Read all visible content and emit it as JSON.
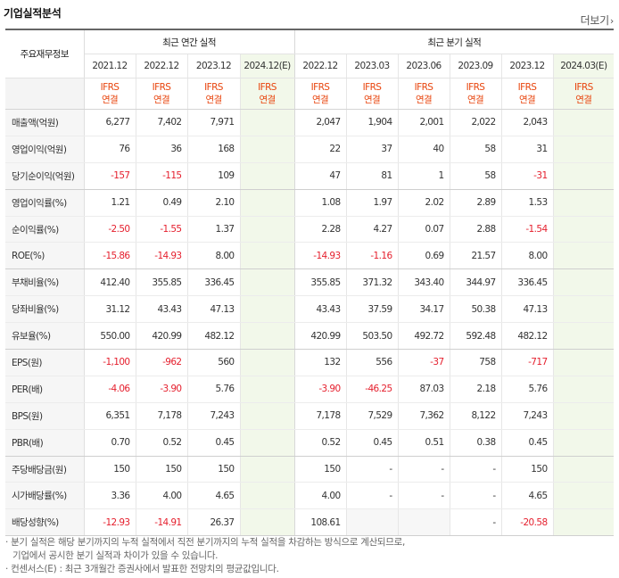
{
  "section_title": "기업실적분석",
  "more_label": "더보기",
  "more_arrow": "›",
  "row_header_label": "주요재무정보",
  "annual_header": "최근 연간 실적",
  "quarter_header": "최근 분기 실적",
  "periods": [
    {
      "label": "2021.12",
      "estimate": false
    },
    {
      "label": "2022.12",
      "estimate": false
    },
    {
      "label": "2023.12",
      "estimate": false
    },
    {
      "label": "2024.12(E)",
      "estimate": true
    },
    {
      "label": "2022.12",
      "estimate": false
    },
    {
      "label": "2023.03",
      "estimate": false
    },
    {
      "label": "2023.06",
      "estimate": false
    },
    {
      "label": "2023.09",
      "estimate": false
    },
    {
      "label": "2023.12",
      "estimate": false
    },
    {
      "label": "2024.03(E)",
      "estimate": true
    }
  ],
  "basis_line1": "IFRS",
  "basis_line2": "연결",
  "rows": [
    {
      "label": "매출액(억원)",
      "values": [
        "6,277",
        "7,402",
        "7,971",
        "",
        "2,047",
        "1,904",
        "2,001",
        "2,022",
        "2,043",
        ""
      ],
      "group_end": false
    },
    {
      "label": "영업이익(억원)",
      "values": [
        "76",
        "36",
        "168",
        "",
        "22",
        "37",
        "40",
        "58",
        "31",
        ""
      ],
      "group_end": false
    },
    {
      "label": "당기순이익(억원)",
      "values": [
        "-157",
        "-115",
        "109",
        "",
        "47",
        "81",
        "1",
        "58",
        "-31",
        ""
      ],
      "group_end": true
    },
    {
      "label": "영업이익률(%)",
      "values": [
        "1.21",
        "0.49",
        "2.10",
        "",
        "1.08",
        "1.97",
        "2.02",
        "2.89",
        "1.53",
        ""
      ],
      "group_end": false
    },
    {
      "label": "순이익률(%)",
      "values": [
        "-2.50",
        "-1.55",
        "1.37",
        "",
        "2.28",
        "4.27",
        "0.07",
        "2.88",
        "-1.54",
        ""
      ],
      "group_end": false
    },
    {
      "label": "ROE(%)",
      "values": [
        "-15.86",
        "-14.93",
        "8.00",
        "",
        "-14.93",
        "-1.16",
        "0.69",
        "21.57",
        "8.00",
        ""
      ],
      "group_end": true
    },
    {
      "label": "부채비율(%)",
      "values": [
        "412.40",
        "355.85",
        "336.45",
        "",
        "355.85",
        "371.32",
        "343.40",
        "344.97",
        "336.45",
        ""
      ],
      "group_end": false
    },
    {
      "label": "당좌비율(%)",
      "values": [
        "31.12",
        "43.43",
        "47.13",
        "",
        "43.43",
        "37.59",
        "34.17",
        "50.38",
        "47.13",
        ""
      ],
      "group_end": false
    },
    {
      "label": "유보율(%)",
      "values": [
        "550.00",
        "420.99",
        "482.12",
        "",
        "420.99",
        "503.50",
        "492.72",
        "592.48",
        "482.12",
        ""
      ],
      "group_end": true
    },
    {
      "label": "EPS(원)",
      "values": [
        "-1,100",
        "-962",
        "560",
        "",
        "132",
        "556",
        "-37",
        "758",
        "-717",
        ""
      ],
      "group_end": false
    },
    {
      "label": "PER(배)",
      "values": [
        "-4.06",
        "-3.90",
        "5.76",
        "",
        "-3.90",
        "-46.25",
        "87.03",
        "2.18",
        "5.76",
        ""
      ],
      "group_end": false
    },
    {
      "label": "BPS(원)",
      "values": [
        "6,351",
        "7,178",
        "7,243",
        "",
        "7,178",
        "7,529",
        "7,362",
        "8,122",
        "7,243",
        ""
      ],
      "group_end": false
    },
    {
      "label": "PBR(배)",
      "values": [
        "0.70",
        "0.52",
        "0.45",
        "",
        "0.52",
        "0.45",
        "0.51",
        "0.38",
        "0.45",
        ""
      ],
      "group_end": true
    },
    {
      "label": "주당배당금(원)",
      "values": [
        "150",
        "150",
        "150",
        "",
        "150",
        "-",
        "-",
        "-",
        "150",
        ""
      ],
      "group_end": false
    },
    {
      "label": "시가배당률(%)",
      "values": [
        "3.36",
        "4.00",
        "4.65",
        "",
        "4.00",
        "-",
        "-",
        "-",
        "4.65",
        ""
      ],
      "group_end": false
    },
    {
      "label": "배당성향(%)",
      "values": [
        "-12.93",
        "-14.91",
        "26.37",
        "",
        "108.61",
        "",
        "",
        "-",
        "-20.58",
        ""
      ],
      "group_end": true
    }
  ],
  "empty_cells": [
    [
      15,
      5
    ],
    [
      15,
      6
    ]
  ],
  "notes": [
    "· 분기 실적은 해당 분기까지의 누적 실적에서 직전 분기까지의 누적 실적을 차감하는 방식으로 계산되므로,",
    "  기업에서 공시한 분기 실적과 차이가 있을 수 있습니다.",
    "· 컨센서스(E) : 최근 3개월간 증권사에서 발표한 전망치의 평균값입니다."
  ],
  "colors": {
    "negative": "#e5202e",
    "basis": "#e8450e",
    "estimate_bg": "#f2f8ea",
    "consensus": "#5a9a28"
  }
}
